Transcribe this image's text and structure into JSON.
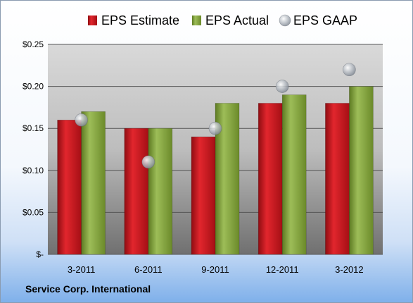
{
  "footer": {
    "company": "Service Corp. International"
  },
  "colors": {
    "estimate": "#c8161d",
    "actual": "#7e9e37",
    "gaap": "#a4acb6"
  },
  "chart_data": {
    "type": "bar",
    "categories": [
      "3-2011",
      "6-2011",
      "9-2011",
      "12-2011",
      "3-2012"
    ],
    "series": [
      {
        "name": "EPS Estimate",
        "type": "bar",
        "values": [
          0.16,
          0.15,
          0.14,
          0.18,
          0.18
        ]
      },
      {
        "name": "EPS Actual",
        "type": "bar",
        "values": [
          0.17,
          0.15,
          0.18,
          0.19,
          0.2
        ]
      },
      {
        "name": "EPS GAAP",
        "type": "scatter",
        "values": [
          0.16,
          0.11,
          0.15,
          0.2,
          0.22
        ]
      }
    ],
    "yticks": [
      0,
      0.05,
      0.1,
      0.15,
      0.2,
      0.25
    ],
    "ytick_labels": [
      "$-",
      "$0.05",
      "$0.10",
      "$0.15",
      "$0.20",
      "$0.25"
    ],
    "ylim": [
      0,
      0.25
    ],
    "grid": true,
    "legend": "top"
  }
}
